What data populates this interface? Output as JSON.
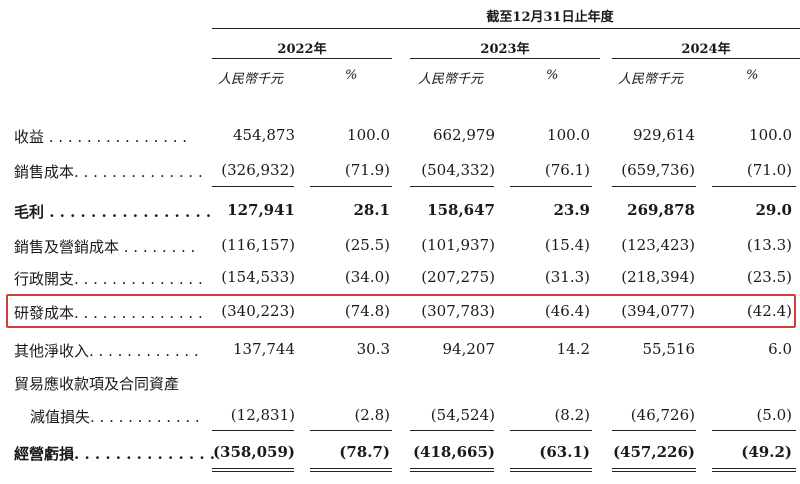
{
  "header": {
    "period": "截至12月31日止年度",
    "years": [
      "2022年",
      "2023年",
      "2024年"
    ],
    "unit_rmb": "人民幣千元",
    "unit_pct": "%"
  },
  "rows": [
    {
      "label": "收益 . . . . . . . . . . . . . . .",
      "values": [
        "454,873",
        "100.0",
        "662,979",
        "100.0",
        "929,614",
        "100.0"
      ],
      "bold": false
    },
    {
      "label": "銷售成本. . . . . . . . . . . . . .",
      "values": [
        "(326,932)",
        "(71.9)",
        "(504,332)",
        "(76.1)",
        "(659,736)",
        "(71.0)"
      ],
      "bold": false
    },
    {
      "label": "毛利 . . . . . . . . . . . . . . . .",
      "values": [
        "127,941",
        "28.1",
        "158,647",
        "23.9",
        "269,878",
        "29.0"
      ],
      "bold": true
    },
    {
      "label": "銷售及營銷成本 . . . . . . . .",
      "values": [
        "(116,157)",
        "(25.5)",
        "(101,937)",
        "(15.4)",
        "(123,423)",
        "(13.3)"
      ],
      "bold": false
    },
    {
      "label": "行政開支. . . . . . . . . . . . . .",
      "values": [
        "(154,533)",
        "(34.0)",
        "(207,275)",
        "(31.3)",
        "(218,394)",
        "(23.5)"
      ],
      "bold": false
    },
    {
      "label": "研發成本. . . . . . . . . . . . . .",
      "values": [
        "(340,223)",
        "(74.8)",
        "(307,783)",
        "(46.4)",
        "(394,077)",
        "(42.4)"
      ],
      "bold": false
    },
    {
      "label": "其他淨收入. . . . . . . . . . . .",
      "values": [
        "137,744",
        "30.3",
        "94,207",
        "14.2",
        "55,516",
        "6.0"
      ],
      "bold": false
    },
    {
      "label": "貿易應收款項及合同資產",
      "values": [
        "",
        "",
        "",
        "",
        "",
        ""
      ],
      "bold": false
    },
    {
      "label": "  減值損失. . . . . . . . . . . .",
      "values": [
        "(12,831)",
        "(2.8)",
        "(54,524)",
        "(8.2)",
        "(46,726)",
        "(5.0)"
      ],
      "bold": false
    },
    {
      "label": "經營虧損. . . . . . . . . . . . . .",
      "values": [
        "(358,059)",
        "(78.7)",
        "(418,665)",
        "(63.1)",
        "(457,226)",
        "(49.2)"
      ],
      "bold": true
    }
  ]
}
